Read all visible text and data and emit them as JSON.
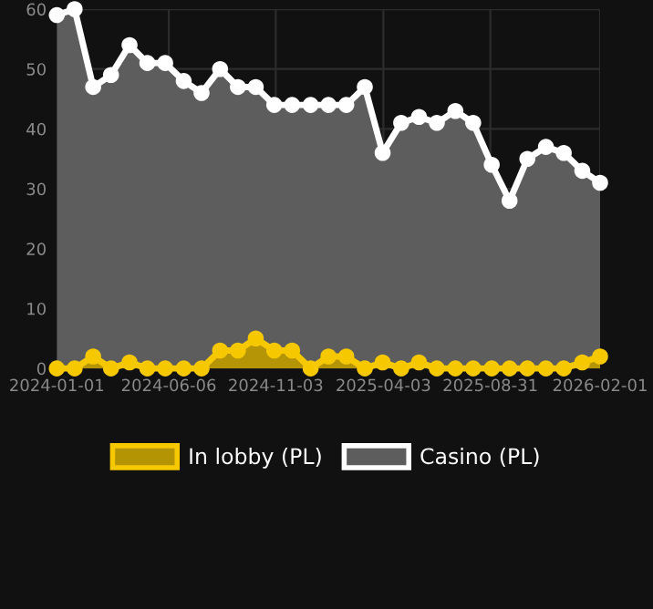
{
  "chart_data": {
    "type": "area",
    "x": [
      "2024-01-01",
      "2024-01-26",
      "2024-02-21",
      "2024-03-17",
      "2024-04-12",
      "2024-05-07",
      "2024-06-01",
      "2024-06-27",
      "2024-07-22",
      "2024-08-17",
      "2024-09-11",
      "2024-10-06",
      "2024-11-01",
      "2024-11-26",
      "2024-12-22",
      "2025-01-16",
      "2025-02-10",
      "2025-03-08",
      "2025-04-02",
      "2025-04-28",
      "2025-05-23",
      "2025-06-17",
      "2025-07-13",
      "2025-08-07",
      "2025-09-02",
      "2025-09-27",
      "2025-10-22",
      "2025-11-17",
      "2025-12-12",
      "2026-01-07",
      "2026-02-01"
    ],
    "series": [
      {
        "name": "Casino (PL)",
        "color": "#ffffff",
        "values": [
          59,
          60,
          47,
          49,
          54,
          51,
          51,
          48,
          46,
          50,
          47,
          47,
          44,
          44,
          44,
          44,
          44,
          47,
          36,
          41,
          42,
          41,
          43,
          41,
          34,
          28,
          35,
          37,
          36,
          33,
          31
        ]
      },
      {
        "name": "In lobby (PL)",
        "color": "#f5c800",
        "values": [
          0,
          0,
          2,
          0,
          1,
          0,
          0,
          0,
          0,
          3,
          3,
          5,
          3,
          3,
          0,
          2,
          2,
          0,
          1,
          0,
          1,
          0,
          0,
          0,
          0,
          0,
          0,
          0,
          0,
          1,
          2
        ]
      }
    ],
    "xlim": [
      "2024-01-01",
      "2026-02-01"
    ],
    "xticks": [
      "2024-01-01",
      "2024-06-06",
      "2024-11-03",
      "2025-04-03",
      "2025-08-31",
      "2026-02-01"
    ],
    "ylim": [
      0,
      60
    ],
    "yticks": [
      0,
      10,
      20,
      30,
      40,
      50,
      60
    ],
    "grid": true,
    "legend": "bottom",
    "marker": "circle",
    "line_style": "solid"
  }
}
